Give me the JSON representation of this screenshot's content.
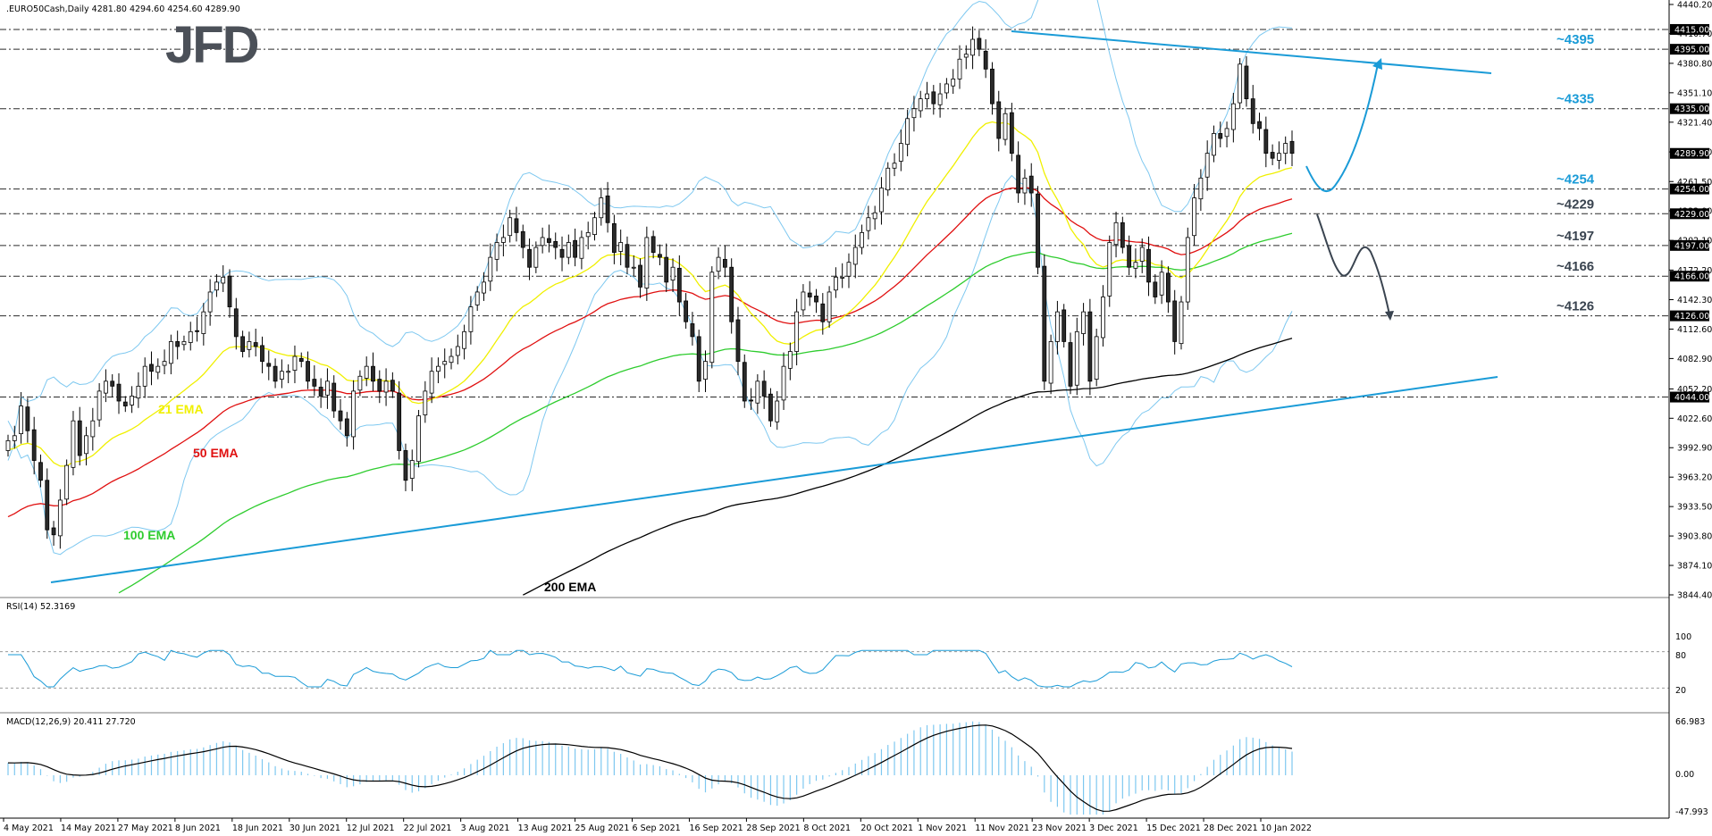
{
  "header": {
    "symbol_line": ".EURO50Cash,Daily  4281.80 4294.60 4254.60 4289.90",
    "rsi_label": "RSI(14) 52.3169",
    "macd_label": "MACD(12,26,9) 20.411 27.720"
  },
  "logo": {
    "text": "JFD"
  },
  "colors": {
    "trendline": "#1a9bd7",
    "ema21": "#f0f000",
    "ema50": "#e01010",
    "ema100": "#2ecc2e",
    "ema200": "#000000",
    "bollinger": "#7ec8f0",
    "level_up": "#1a9bd7",
    "level_down": "#3a4450",
    "tag_bg": "#000000"
  },
  "chart_data": {
    "type": "candlestick",
    "instrument": "EURO50Cash",
    "timeframe": "Daily",
    "last_bar": {
      "open": 4281.8,
      "high": 4294.6,
      "low": 4254.6,
      "close": 4289.9
    },
    "price_axis_ticks": [
      "4440.20",
      "4410.70",
      "4380.80",
      "4351.10",
      "4321.40",
      "4291.40",
      "4261.50",
      "4232.00",
      "4202.10",
      "4172.20",
      "4142.30",
      "4112.60",
      "4082.90",
      "4052.20",
      "4022.60",
      "3992.90",
      "3963.20",
      "3933.50",
      "3903.80",
      "3874.10",
      "3844.40"
    ],
    "price_tags": [
      {
        "label": "4415.00",
        "value": 4415
      },
      {
        "label": "4395.00",
        "value": 4395
      },
      {
        "label": "4335.00",
        "value": 4335
      },
      {
        "label": "4289.90",
        "value": 4289.9
      },
      {
        "label": "4254.00",
        "value": 4254
      },
      {
        "label": "4229.00",
        "value": 4229
      },
      {
        "label": "4197.00",
        "value": 4197
      },
      {
        "label": "4166.00",
        "value": 4166
      },
      {
        "label": "4126.00",
        "value": 4126
      },
      {
        "label": "4044.00",
        "value": 4044
      }
    ],
    "levels": [
      {
        "label": "~4395",
        "value": 4395,
        "color": "#1a9bd7"
      },
      {
        "label": "~4335",
        "value": 4335,
        "color": "#1a9bd7"
      },
      {
        "label": "~4254",
        "value": 4254,
        "color": "#1a9bd7"
      },
      {
        "label": "~4229",
        "value": 4229,
        "color": "#3a4450"
      },
      {
        "label": "~4197",
        "value": 4197,
        "color": "#3a4450"
      },
      {
        "label": "~4166",
        "value": 4166,
        "color": "#3a4450"
      },
      {
        "label": "~4126",
        "value": 4126,
        "color": "#3a4450"
      }
    ],
    "unlabeled_levels": [
      4415,
      4044
    ],
    "ema_labels": [
      {
        "label": "21 EMA",
        "color": "#f0f000"
      },
      {
        "label": "50 EMA",
        "color": "#e01010"
      },
      {
        "label": "100 EMA",
        "color": "#2ecc2e"
      },
      {
        "label": "200 EMA",
        "color": "#000000"
      }
    ],
    "date_labels": [
      "4 May 2021",
      "14 May 2021",
      "27 May 2021",
      "8 Jun 2021",
      "18 Jun 2021",
      "30 Jun 2021",
      "12 Jul 2021",
      "22 Jul 2021",
      "3 Aug 2021",
      "13 Aug 2021",
      "25 Aug 2021",
      "6 Sep 2021",
      "16 Sep 2021",
      "28 Sep 2021",
      "8 Oct 2021",
      "20 Oct 2021",
      "1 Nov 2021",
      "11 Nov 2021",
      "23 Nov 2021",
      "3 Dec 2021",
      "15 Dec 2021",
      "28 Dec 2021",
      "10 Jan 2022"
    ],
    "closes": [
      4000,
      4005,
      4035,
      4010,
      3980,
      3960,
      3910,
      3905,
      3940,
      3975,
      4020,
      3985,
      4005,
      4020,
      4050,
      4060,
      4055,
      4040,
      4035,
      4045,
      4055,
      4075,
      4070,
      4075,
      4080,
      4100,
      4095,
      4100,
      4110,
      4110,
      4130,
      4150,
      4160,
      4165,
      4135,
      4105,
      4090,
      4100,
      4095,
      4080,
      4075,
      4060,
      4070,
      4070,
      4085,
      4080,
      4060,
      4055,
      4045,
      4060,
      4030,
      4020,
      4005,
      4050,
      4065,
      4075,
      4060,
      4050,
      4060,
      4050,
      3990,
      3960,
      3980,
      4025,
      4050,
      4070,
      4075,
      4080,
      4085,
      4095,
      4110,
      4135,
      4150,
      4160,
      4185,
      4200,
      4205,
      4225,
      4210,
      4195,
      4175,
      4195,
      4205,
      4200,
      4195,
      4185,
      4200,
      4185,
      4205,
      4210,
      4225,
      4245,
      4220,
      4190,
      4200,
      4175,
      4175,
      4155,
      4205,
      4190,
      4185,
      4160,
      4175,
      4140,
      4120,
      4105,
      4060,
      4080,
      4170,
      4185,
      4175,
      4120,
      4080,
      4040,
      4040,
      4060,
      4045,
      4020,
      4040,
      4075,
      4090,
      4130,
      4150,
      4145,
      4140,
      4120,
      4150,
      4165,
      4165,
      4180,
      4195,
      4210,
      4225,
      4230,
      4255,
      4275,
      4280,
      4300,
      4325,
      4335,
      4345,
      4350,
      4340,
      4350,
      4360,
      4365,
      4385,
      4390,
      4405,
      4395,
      4375,
      4340,
      4305,
      4330,
      4290,
      4250,
      4265,
      4250,
      4175,
      4060,
      4100,
      4130,
      4100,
      4055,
      4110,
      4130,
      4060,
      4105,
      4145,
      4200,
      4220,
      4195,
      4175,
      4180,
      4195,
      4160,
      4145,
      4170,
      4140,
      4100,
      4140,
      4205,
      4245,
      4265,
      4290,
      4310,
      4305,
      4315,
      4340,
      4380,
      4345,
      4320,
      4315,
      4290,
      4285,
      4290,
      4300,
      4290
    ]
  }
}
